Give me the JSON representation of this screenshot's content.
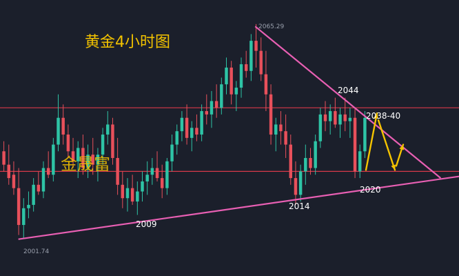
{
  "chart_data": {
    "type": "candlestick",
    "title": "黄金4小时图",
    "watermark": "金晟富",
    "high_label": "2065.29",
    "low_label": "2001.74",
    "labels": {
      "resistance_top": "2044",
      "resistance_zone": "2038-40",
      "support_recent": "2020",
      "support_mid": "2014",
      "support_early": "2009"
    },
    "horizontal_levels": [
      2041,
      2022
    ],
    "trendlines": [
      {
        "name": "descending-resistance",
        "from": [
          0.556,
          2065.29
        ],
        "to": [
          0.96,
          2020
        ]
      },
      {
        "name": "ascending-support",
        "from": [
          0.04,
          2001.74
        ],
        "to": [
          1.0,
          2020.5
        ]
      }
    ],
    "projection_arrows": [
      "up",
      "down",
      "up"
    ],
    "y_range": [
      1999,
      2067
    ],
    "colors": {
      "bull": "#2ec4a6",
      "bear": "#e8505b",
      "trend": "#e85fb3",
      "level": "#d9394a",
      "arrow": "#f5c400"
    },
    "ohlc": [
      [
        2028,
        2031,
        2022,
        2024
      ],
      [
        2024,
        2030,
        2018,
        2020
      ],
      [
        2021,
        2025,
        2015,
        2017
      ],
      [
        2017,
        2023,
        2003,
        2006
      ],
      [
        2006,
        2014,
        2002,
        2011
      ],
      [
        2011,
        2016,
        2008,
        2012
      ],
      [
        2012,
        2020,
        2010,
        2018
      ],
      [
        2018,
        2022,
        2015,
        2016
      ],
      [
        2016,
        2025,
        2014,
        2023
      ],
      [
        2023,
        2028,
        2020,
        2021
      ],
      [
        2021,
        2032,
        2019,
        2030
      ],
      [
        2030,
        2045,
        2028,
        2038
      ],
      [
        2038,
        2042,
        2030,
        2033
      ],
      [
        2033,
        2036,
        2026,
        2028
      ],
      [
        2028,
        2032,
        2023,
        2025
      ],
      [
        2025,
        2031,
        2020,
        2029
      ],
      [
        2029,
        2033,
        2021,
        2023
      ],
      [
        2023,
        2030,
        2020,
        2027
      ],
      [
        2027,
        2032,
        2021,
        2024
      ],
      [
        2024,
        2029,
        2019,
        2027
      ],
      [
        2027,
        2035,
        2024,
        2033
      ],
      [
        2033,
        2040,
        2030,
        2036
      ],
      [
        2036,
        2038,
        2024,
        2026
      ],
      [
        2026,
        2032,
        2015,
        2018
      ],
      [
        2018,
        2022,
        2011,
        2014
      ],
      [
        2014,
        2020,
        2010,
        2017
      ],
      [
        2017,
        2021,
        2012,
        2013
      ],
      [
        2013,
        2019,
        2009,
        2016
      ],
      [
        2016,
        2022,
        2013,
        2019
      ],
      [
        2019,
        2025,
        2015,
        2021
      ],
      [
        2021,
        2026,
        2018,
        2023
      ],
      [
        2023,
        2028,
        2019,
        2020
      ],
      [
        2020,
        2024,
        2014,
        2017
      ],
      [
        2017,
        2026,
        2015,
        2025
      ],
      [
        2025,
        2033,
        2022,
        2030
      ],
      [
        2030,
        2036,
        2027,
        2034
      ],
      [
        2034,
        2040,
        2031,
        2038
      ],
      [
        2038,
        2042,
        2030,
        2032
      ],
      [
        2032,
        2037,
        2028,
        2035
      ],
      [
        2035,
        2039,
        2031,
        2033
      ],
      [
        2033,
        2042,
        2031,
        2040
      ],
      [
        2040,
        2045,
        2036,
        2039
      ],
      [
        2039,
        2046,
        2035,
        2043
      ],
      [
        2043,
        2048,
        2038,
        2041
      ],
      [
        2041,
        2050,
        2039,
        2048
      ],
      [
        2048,
        2056,
        2045,
        2053
      ],
      [
        2053,
        2055,
        2042,
        2045
      ],
      [
        2045,
        2049,
        2040,
        2047
      ],
      [
        2047,
        2056,
        2044,
        2054
      ],
      [
        2054,
        2058,
        2050,
        2052
      ],
      [
        2052,
        2063,
        2049,
        2061
      ],
      [
        2061,
        2066,
        2053,
        2058
      ],
      [
        2058,
        2062,
        2049,
        2051
      ],
      [
        2051,
        2058,
        2040,
        2045
      ],
      [
        2045,
        2048,
        2030,
        2033
      ],
      [
        2033,
        2038,
        2028,
        2036
      ],
      [
        2036,
        2040,
        2030,
        2034
      ],
      [
        2034,
        2039,
        2026,
        2030
      ],
      [
        2030,
        2033,
        2018,
        2020
      ],
      [
        2020,
        2025,
        2012,
        2015
      ],
      [
        2015,
        2024,
        2013,
        2022
      ],
      [
        2022,
        2030,
        2018,
        2026
      ],
      [
        2026,
        2029,
        2021,
        2023
      ],
      [
        2023,
        2033,
        2021,
        2031
      ],
      [
        2031,
        2041,
        2029,
        2039
      ],
      [
        2039,
        2043,
        2034,
        2037
      ],
      [
        2037,
        2042,
        2033,
        2040
      ],
      [
        2040,
        2044,
        2035,
        2036
      ],
      [
        2036,
        2041,
        2032,
        2039
      ],
      [
        2039,
        2044,
        2034,
        2037
      ],
      [
        2037,
        2041,
        2032,
        2038
      ],
      [
        2038,
        2041,
        2020,
        2022
      ],
      [
        2022,
        2030,
        2020,
        2028
      ],
      [
        2028,
        2040,
        2026,
        2038
      ]
    ]
  }
}
